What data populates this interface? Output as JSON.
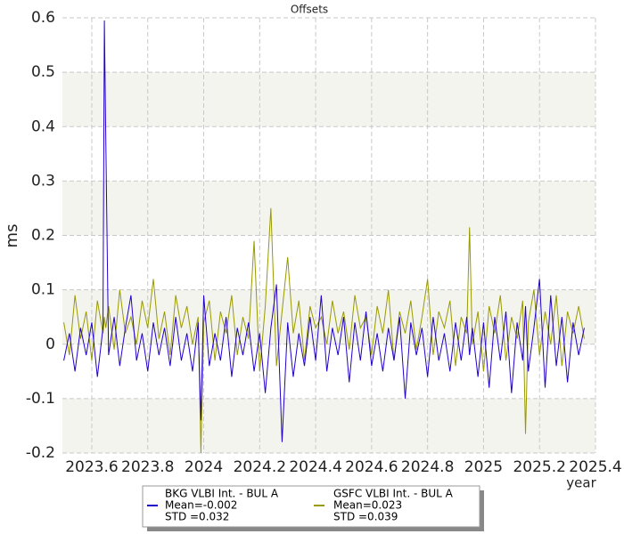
{
  "chart_data": {
    "type": "line",
    "title": "Offsets",
    "xlabel": "year",
    "ylabel": "ms",
    "x": [
      2023.5,
      2023.52,
      2023.54,
      2023.56,
      2023.58,
      2023.6,
      2023.62,
      2023.64,
      2023.645,
      2023.65,
      2023.66,
      2023.68,
      2023.7,
      2023.72,
      2023.74,
      2023.76,
      2023.78,
      2023.8,
      2023.82,
      2023.84,
      2023.86,
      2023.88,
      2023.9,
      2023.92,
      2023.94,
      2023.96,
      2023.98,
      2023.99,
      2024.0,
      2024.02,
      2024.04,
      2024.06,
      2024.08,
      2024.1,
      2024.12,
      2024.14,
      2024.16,
      2024.18,
      2024.2,
      2024.22,
      2024.24,
      2024.26,
      2024.28,
      2024.3,
      2024.32,
      2024.34,
      2024.36,
      2024.38,
      2024.4,
      2024.42,
      2024.44,
      2024.46,
      2024.48,
      2024.5,
      2024.52,
      2024.54,
      2024.56,
      2024.58,
      2024.6,
      2024.62,
      2024.64,
      2024.66,
      2024.68,
      2024.7,
      2024.72,
      2024.74,
      2024.76,
      2024.78,
      2024.8,
      2024.82,
      2024.84,
      2024.86,
      2024.88,
      2024.9,
      2024.92,
      2024.94,
      2024.95,
      2024.96,
      2024.98,
      2025.0,
      2025.02,
      2025.04,
      2025.06,
      2025.08,
      2025.1,
      2025.12,
      2025.14,
      2025.15,
      2025.16,
      2025.18,
      2025.2,
      2025.22,
      2025.24,
      2025.26,
      2025.28,
      2025.3,
      2025.32,
      2025.34,
      2025.36
    ],
    "series": [
      {
        "name": "BKG VLBI Int. - BUL A",
        "mean_label": "Mean=-0.002",
        "std_label": "STD =0.032",
        "color": "#2200cc",
        "values": [
          -0.03,
          0.02,
          -0.05,
          0.03,
          -0.02,
          0.04,
          -0.06,
          0.03,
          0.595,
          0.38,
          -0.02,
          0.05,
          -0.04,
          0.03,
          0.09,
          -0.03,
          0.02,
          -0.05,
          0.04,
          -0.02,
          0.03,
          -0.04,
          0.05,
          -0.03,
          0.02,
          -0.05,
          0.04,
          -0.14,
          0.09,
          -0.04,
          0.02,
          -0.03,
          0.05,
          -0.06,
          0.03,
          -0.02,
          0.04,
          -0.05,
          0.02,
          -0.09,
          0.03,
          0.11,
          -0.18,
          0.04,
          -0.06,
          0.02,
          -0.04,
          0.05,
          -0.03,
          0.09,
          -0.05,
          0.03,
          -0.02,
          0.05,
          -0.07,
          0.04,
          -0.03,
          0.06,
          -0.04,
          0.02,
          -0.05,
          0.03,
          -0.03,
          0.05,
          -0.1,
          0.04,
          -0.02,
          0.03,
          -0.06,
          0.05,
          -0.03,
          0.02,
          -0.05,
          0.04,
          -0.03,
          0.05,
          -0.02,
          0.03,
          -0.06,
          0.04,
          -0.08,
          0.05,
          -0.03,
          0.06,
          -0.09,
          0.04,
          -0.03,
          0.07,
          -0.05,
          0.03,
          0.12,
          -0.08,
          0.09,
          -0.04,
          0.05,
          -0.07,
          0.04,
          -0.02,
          0.03
        ]
      },
      {
        "name": "GSFC VLBI Int. - BUL A",
        "mean_label": "Mean=0.023",
        "std_label": "STD =0.039",
        "color": "#999900",
        "values": [
          0.04,
          -0.02,
          0.09,
          0.01,
          0.06,
          -0.03,
          0.08,
          0.02,
          0.05,
          0.03,
          0.07,
          -0.01,
          0.1,
          0.02,
          0.05,
          0.0,
          0.08,
          0.03,
          0.12,
          0.01,
          0.06,
          -0.02,
          0.09,
          0.03,
          0.07,
          0.0,
          0.05,
          -0.2,
          0.04,
          0.08,
          -0.03,
          0.06,
          0.02,
          0.09,
          -0.02,
          0.05,
          0.01,
          0.19,
          -0.05,
          0.07,
          0.25,
          -0.04,
          0.06,
          0.16,
          0.02,
          0.08,
          -0.03,
          0.07,
          0.03,
          0.05,
          0.0,
          0.08,
          0.02,
          0.06,
          -0.01,
          0.09,
          0.03,
          0.05,
          -0.02,
          0.07,
          0.02,
          0.1,
          -0.03,
          0.06,
          0.02,
          0.08,
          -0.01,
          0.05,
          0.12,
          -0.02,
          0.06,
          0.03,
          0.08,
          -0.04,
          0.05,
          0.02,
          0.215,
          0.0,
          0.06,
          -0.05,
          0.07,
          0.02,
          0.09,
          -0.03,
          0.05,
          0.01,
          0.08,
          -0.165,
          0.04,
          0.1,
          -0.02,
          0.06,
          0.0,
          0.09,
          -0.04,
          0.06,
          0.02,
          0.07,
          0.01
        ]
      }
    ],
    "xlim": [
      2023.495,
      2025.4
    ],
    "xticks": [
      2023.6,
      2023.8,
      2024,
      2024.2,
      2024.4,
      2024.6,
      2024.8,
      2025,
      2025.2,
      2025.4
    ],
    "ylim": [
      -0.2,
      0.6
    ],
    "yticks": [
      -0.2,
      -0.1,
      0,
      0.1,
      0.2,
      0.3,
      0.4,
      0.5,
      0.6
    ],
    "grid": true
  }
}
